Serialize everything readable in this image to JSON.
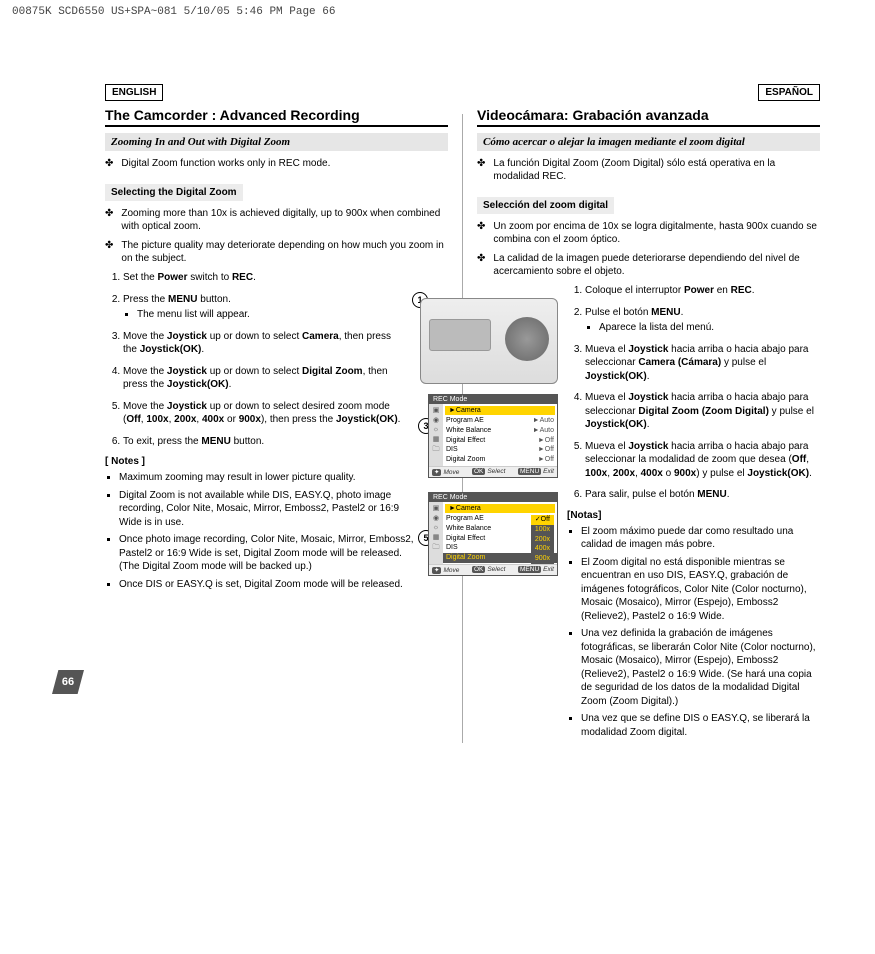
{
  "pageHeader": "00875K SCD6550 US+SPA~081  5/10/05 5:46 PM  Page 66",
  "pageNumber": "66",
  "en": {
    "lang": "ENGLISH",
    "title": "The Camcorder : Advanced Recording",
    "subtitle": "Zooming In and Out with Digital Zoom",
    "intro": "Digital Zoom function works only in REC mode.",
    "sectionLabel": "Selecting the Digital Zoom",
    "sectBullets": [
      "Zooming more than 10x is achieved digitally, up to 900x when combined with optical zoom.",
      "The picture quality may deteriorate depending on how much you zoom in on the subject."
    ],
    "steps": [
      "Set the <b>Power</b> switch to <b>REC</b>.",
      "Press the <b>MENU</b> button.<ul class='sub'><li>The menu list will appear.</li></ul>",
      "Move the <b>Joystick</b> up or down to select <b>Camera</b>, then press the <b>Joystick(OK)</b>.",
      "Move the <b>Joystick</b> up or down to select <b>Digital Zoom</b>, then press the <b>Joystick(OK)</b>.",
      "Move the <b>Joystick</b> up or down to select desired zoom mode (<b>Off</b>, <b>100x</b>, <b>200x</b>, <b>400x</b> or <b>900x</b>), then press the <b>Joystick(OK)</b>.",
      "To exit, press the <b>MENU</b> button."
    ],
    "notesHdr": "[ Notes ]",
    "notes": [
      "Maximum zooming may result in lower picture quality.",
      "Digital Zoom is not available while DIS, EASY.Q, photo image recording, Color Nite, Mosaic, Mirror, Emboss2, Pastel2 or 16:9 Wide is in use.",
      "Once photo image recording, Color Nite, Mosaic, Mirror, Emboss2, Pastel2 or 16:9 Wide is set, Digital Zoom mode will be released. (The Digital Zoom mode will be backed up.)",
      "Once DIS or EASY.Q is set, Digital Zoom mode will be released."
    ]
  },
  "es": {
    "lang": "ESPAÑOL",
    "title": "Videocámara: Grabación avanzada",
    "subtitle": "Cómo acercar o alejar la imagen mediante el zoom digital",
    "intro": "La función Digital Zoom (Zoom Digital) sólo está operativa en la modalidad REC.",
    "sectionLabel": "Selección del zoom digital",
    "sectBullets": [
      "Un zoom por encima de 10x se logra digitalmente, hasta 900x cuando se combina con el zoom óptico.",
      "La calidad de la imagen puede deteriorarse dependiendo del nivel de acercamiento sobre el objeto."
    ],
    "steps": [
      "Coloque el interruptor <b>Power</b> en <b>REC</b>.",
      "Pulse el botón <b>MENU</b>.<ul class='sub'><li>Aparece la lista del menú.</li></ul>",
      "Mueva el <b>Joystick</b> hacia arriba o hacia abajo para seleccionar <b>Camera (Cámara)</b> y pulse el <b>Joystick(OK)</b>.",
      "Mueva el <b>Joystick</b> hacia arriba o hacia abajo para seleccionar <b>Digital Zoom (Zoom Digital)</b> y pulse el <b>Joystick(OK)</b>.",
      "Mueva el <b>Joystick</b> hacia arriba o hacia abajo para seleccionar la modalidad de zoom que desea (<b>Off</b>, <b>100x</b>, <b>200x</b>, <b>400x</b> o <b>900x</b>) y pulse el <b>Joystick(OK)</b>.",
      "Para salir, pulse el botón <b>MENU</b>."
    ],
    "notesHdr": "[Notas]",
    "notes": [
      "El zoom máximo puede dar como resultado una calidad de imagen más pobre.",
      "El Zoom digital no está disponible mientras se encuentran en uso DIS, EASY.Q, grabación de imágenes fotográficos, Color Nite (Color nocturno), Mosaic (Mosaico), Mirror (Espejo), Emboss2 (Relieve2), Pastel2 o 16:9 Wide.",
      "Una vez definida la grabación de imágenes fotográficas, se liberarán Color Nite (Color nocturno), Mosaic (Mosaico), Mirror (Espejo), Emboss2 (Relieve2), Pastel2 o 16:9 Wide. (Se hará una copia de seguridad de los datos de la modalidad Digital Zoom (Zoom Digital).)",
      "Una vez que se define DIS o EASY.Q, se liberará la modalidad Zoom digital."
    ]
  },
  "osd": {
    "hdr": "REC Mode",
    "sel": "►Camera",
    "rows3": [
      [
        "Program AE",
        "►Auto"
      ],
      [
        "White Balance",
        "►Auto"
      ],
      [
        "Digital Effect",
        "►Off"
      ],
      [
        "DIS",
        "►Off"
      ],
      [
        "Digital Zoom",
        "►Off"
      ]
    ],
    "rows5": [
      [
        "Program AE",
        ""
      ],
      [
        "White Balance",
        ""
      ],
      [
        "Digital Effect",
        ""
      ],
      [
        "DIS",
        ""
      ],
      [
        "Digital Zoom",
        ""
      ]
    ],
    "opts": [
      "✓Off",
      "100x",
      "200x",
      "400x",
      "900x"
    ],
    "foot": {
      "move": "Move",
      "select": "Select",
      "exit": "Exit",
      "moveK": "✦",
      "selK": "OK",
      "exitK": "MENU"
    }
  }
}
